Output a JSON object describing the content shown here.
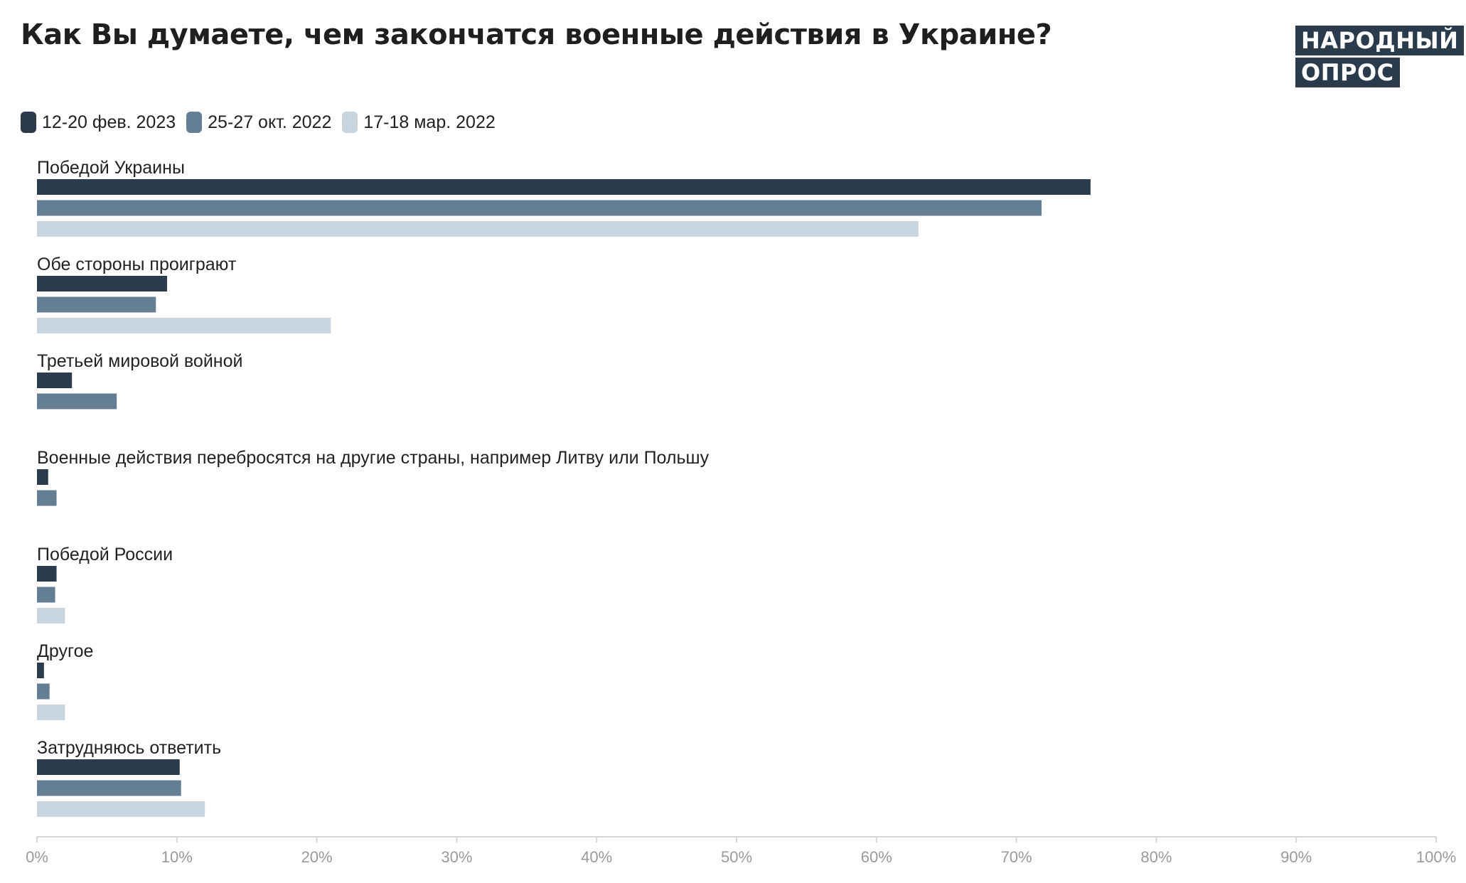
{
  "chart_data": {
    "type": "bar",
    "orientation": "horizontal",
    "title": "Как Вы думаете, чем закончатся военные действия в Украине?",
    "categories": [
      "Победой Украины",
      "Обе стороны проиграют",
      "Третьей мировой войной",
      "Военные действия перебросятся на другие страны, например Литву или Польшу",
      "Победой России",
      "Другое",
      "Затрудняюсь ответить"
    ],
    "series": [
      {
        "name": "12-20 фев. 2023",
        "color": "#2a3c4c",
        "values": [
          75.3,
          9.3,
          2.5,
          0.8,
          1.4,
          0.5,
          10.2
        ]
      },
      {
        "name": "25-27 окт. 2022",
        "color": "#647f94",
        "values": [
          71.8,
          8.5,
          5.7,
          1.4,
          1.3,
          0.9,
          10.3
        ]
      },
      {
        "name": "17-18 мар. 2022",
        "color": "#c9d5de",
        "values": [
          63.0,
          21.0,
          null,
          null,
          2.0,
          2.0,
          12.0
        ]
      }
    ],
    "xlim": [
      0,
      100
    ],
    "x_ticks": [
      "0%",
      "10%",
      "20%",
      "30%",
      "40%",
      "50%",
      "60%",
      "70%",
      "80%",
      "90%",
      "100%"
    ],
    "legend_position": "top-left",
    "grid": false
  },
  "logo": {
    "line1": "НАРОДНЫЙ",
    "line2": "ОПРОС"
  }
}
